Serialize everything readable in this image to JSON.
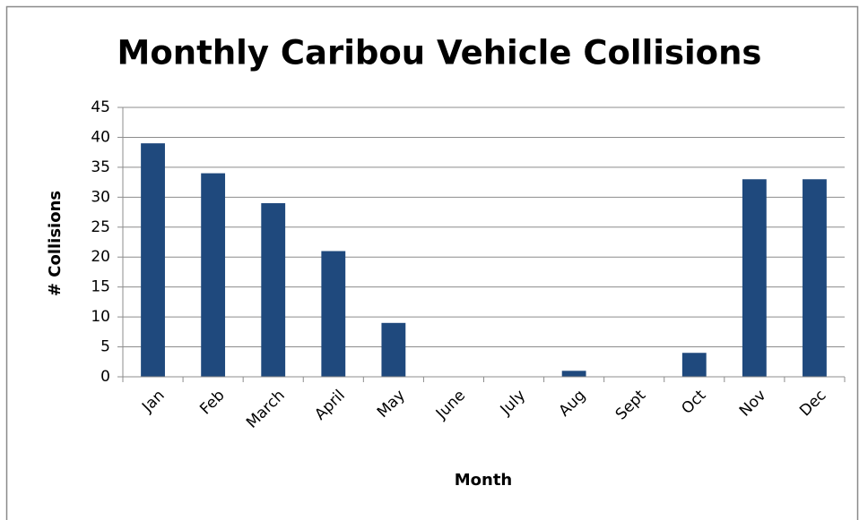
{
  "chart_data": {
    "type": "bar",
    "title": "Monthly Caribou Vehicle Collisions",
    "x_label": "Month",
    "y_label": "# Collisions",
    "categories": [
      "Jan",
      "Feb",
      "March",
      "April",
      "May",
      "June",
      "July",
      "Aug",
      "Sept",
      "Oct",
      "Nov",
      "Dec"
    ],
    "values": [
      39,
      34,
      29,
      21,
      9,
      0,
      0,
      1,
      0,
      4,
      33,
      33
    ],
    "color": "#1f497d",
    "ylim": [
      0,
      45
    ],
    "yticks": [
      0,
      5,
      10,
      15,
      20,
      25,
      30,
      35,
      40,
      45
    ],
    "grid": true
  }
}
